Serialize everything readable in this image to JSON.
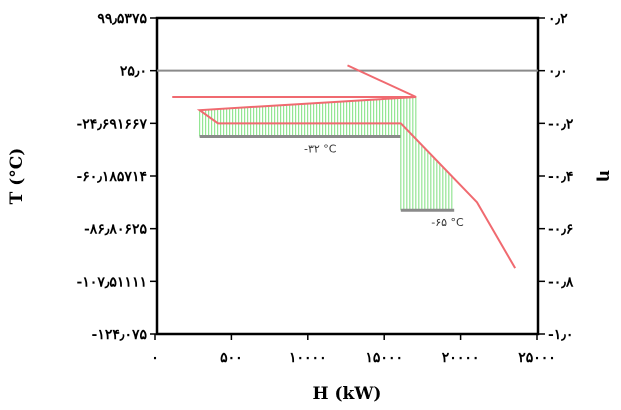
{
  "chart_data": {
    "type": "line",
    "xlabel": "H (kW)",
    "ylabel": "T (°C)",
    "y2label": "η",
    "x_tick_labels": [
      "۰",
      "۵۰۰",
      "۱۰۰۰۰",
      "۱۵۰۰۰",
      "۲۰۰۰۰",
      "۲۵۰۰۰"
    ],
    "y_tick_labels": [
      "۹۹٫۵۳۷۵",
      "۲۵٫۰",
      "-۲۴٫۶۹۱۶۶۷",
      "-۶۰٫۱۸۵۷۱۴",
      "-۸۶٫۸۰۶۲۵",
      "-۱۰۷٫۵۱۱۱۱",
      "-۱۲۴٫۰۷۵"
    ],
    "y2_tick_labels": [
      "۰٫۲",
      "۰٫۰",
      "-۰٫۲",
      "-۰٫۴",
      "-۰٫۶",
      "-۰٫۸",
      "-۱٫۰"
    ],
    "xlim": [
      0,
      25000
    ],
    "y2lim": [
      -1.0,
      0.2
    ],
    "grid": false,
    "series": [
      {
        "color": "#f06a70",
        "x": [
          12500,
          17000,
          1000,
          17000,
          2800,
          4000,
          16000,
          21000,
          23500
        ],
        "y2": [
          0.02,
          -0.1,
          -0.1,
          -0.1,
          -0.15,
          -0.2,
          -0.2,
          -0.5,
          -0.75
        ]
      }
    ],
    "baseline": {
      "color": "#8a8a8a",
      "y2": 0.0,
      "x": [
        0,
        25000
      ]
    },
    "pinch_shading": [
      {
        "label": "-۳۲ °C",
        "color": "#7ee07e",
        "x_range": [
          2800,
          16000
        ],
        "y2": -0.25
      },
      {
        "label": "-۶۵ °C",
        "color": "#7ee07e",
        "x_range": [
          16000,
          19500
        ],
        "y2": -0.53
      }
    ]
  }
}
